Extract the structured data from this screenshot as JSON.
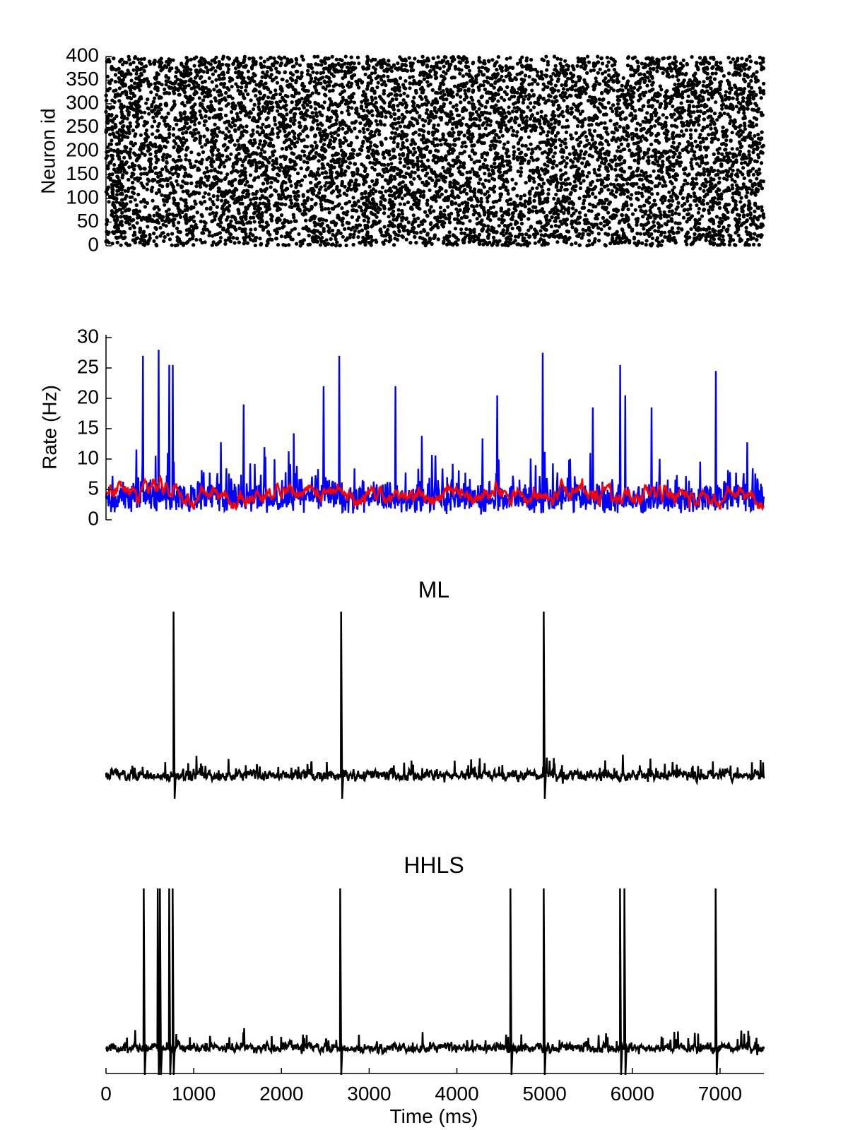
{
  "chart_data": [
    {
      "type": "scatter",
      "panel": "raster",
      "ylabel": "Neuron id",
      "xlabel": "",
      "title": "",
      "xlim": [
        0,
        7500
      ],
      "ylim": [
        0,
        400
      ],
      "yticks": [
        "0",
        "50",
        "100",
        "150",
        "200",
        "250",
        "300",
        "350",
        "400"
      ],
      "marker_color": "#000000",
      "description_level": "dense spike raster, approx. 4 spikes per neuron per second"
    },
    {
      "type": "line",
      "panel": "rate",
      "ylabel": "Rate (Hz)",
      "xlabel": "",
      "title": "",
      "xlim": [
        0,
        7500
      ],
      "ylim": [
        0,
        30
      ],
      "yticks": [
        "0",
        "5",
        "10",
        "15",
        "20",
        "25",
        "30"
      ],
      "series": [
        {
          "color": "#0000ff",
          "baseline": 3,
          "peaks": [
            [
              420,
              27
            ],
            [
              600,
              28
            ],
            [
              720,
              25.5
            ],
            [
              760,
              25.5
            ],
            [
              1570,
              19
            ],
            [
              2480,
              22
            ],
            [
              2660,
              27
            ],
            [
              3300,
              22
            ],
            [
              4460,
              20.5
            ],
            [
              4980,
              27.5
            ],
            [
              5550,
              18.5
            ],
            [
              5860,
              25.5
            ],
            [
              5920,
              20.5
            ],
            [
              6220,
              18.5
            ],
            [
              6950,
              24.5
            ]
          ]
        },
        {
          "color": "#ff0000",
          "mean": 4.2
        }
      ]
    },
    {
      "type": "line",
      "panel": "ML",
      "title": "ML",
      "xlim": [
        0,
        7500
      ],
      "color": "#000000",
      "spike_times": [
        770,
        2680,
        4990
      ]
    },
    {
      "type": "line",
      "panel": "HHLS",
      "title": "HHLS",
      "xlabel": "Time (ms)",
      "xlim": [
        0,
        7500
      ],
      "xticks": [
        "0",
        "1000",
        "2000",
        "3000",
        "4000",
        "5000",
        "6000",
        "7000"
      ],
      "color": "#000000",
      "spike_times": [
        430,
        590,
        615,
        720,
        760,
        2670,
        4610,
        4990,
        5860,
        5910,
        6950
      ]
    }
  ]
}
